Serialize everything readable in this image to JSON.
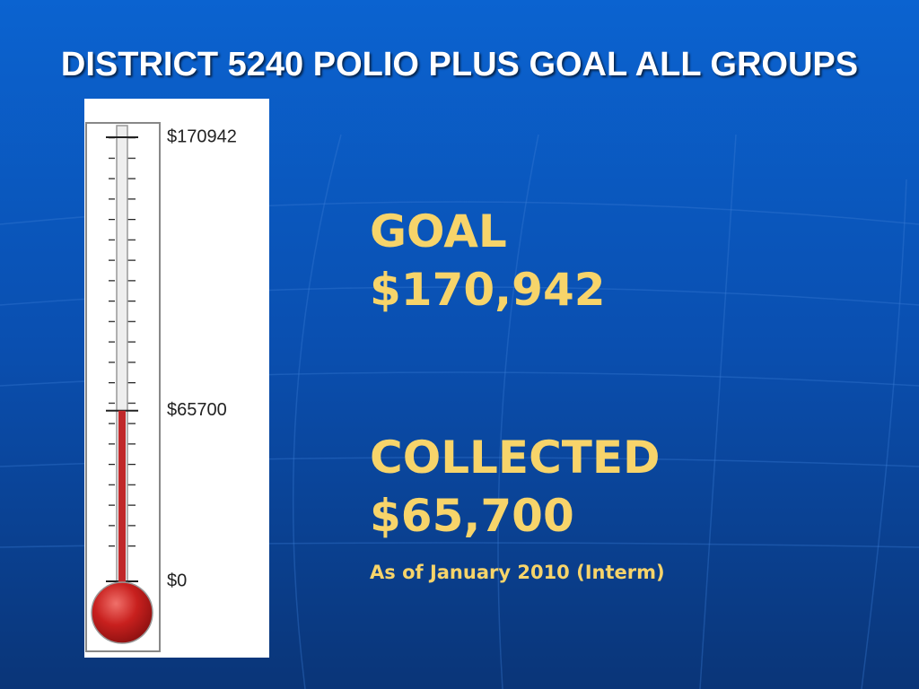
{
  "chart_data": {
    "type": "thermometer",
    "title": "DISTRICT 5240 POLIO PLUS GOAL ALL GROUPS",
    "values": [
      65700
    ],
    "color": "#c0282a",
    "ylim": [
      0,
      170942
    ],
    "yticks": [
      {
        "value": 170942,
        "label": "$170942"
      },
      {
        "value": 65700,
        "label": "$65700"
      },
      {
        "value": 0,
        "label": "$0"
      }
    ],
    "annotations": [
      "GOAL",
      "$170,942",
      "COLLECTED",
      "$65,700",
      "As of January 2010 (Interm)"
    ]
  }
}
